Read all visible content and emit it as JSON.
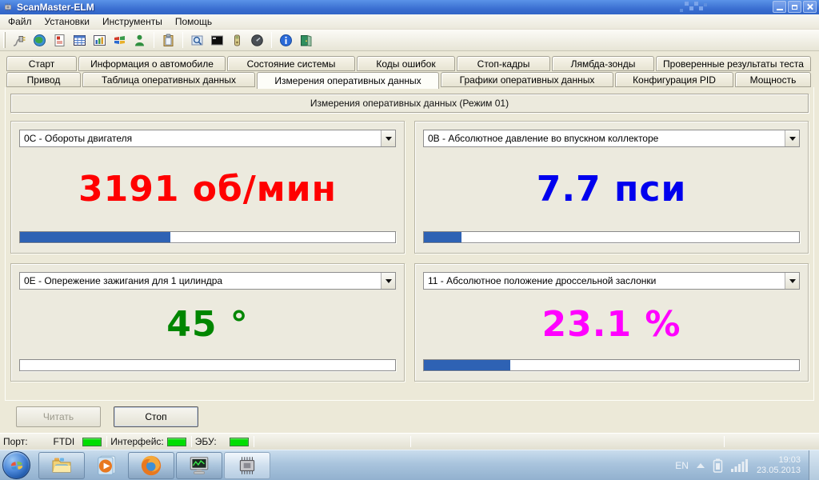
{
  "window": {
    "title": "ScanMaster-ELM",
    "controls": [
      "minimize-icon",
      "restore-icon",
      "close-icon"
    ],
    "app_icon": "chip-icon"
  },
  "menu": {
    "file": "Файл",
    "settings": "Установки",
    "tools": "Инструменты",
    "help": "Помощь"
  },
  "toolbar": {
    "icons": [
      "connect-icon",
      "globe-icon",
      "report-icon",
      "table-icon",
      "chart-icon",
      "windows-icon",
      "user-icon",
      "clipboard-icon",
      "search-icon",
      "terminal-icon",
      "battery-icon",
      "gauge-icon",
      "info-icon",
      "exit-icon"
    ]
  },
  "tabs": {
    "row1": [
      "Старт",
      "Информация о автомобиле",
      "Состояние системы",
      "Коды ошибок",
      "Стоп-кадры",
      "Лямбда-зонды",
      "Проверенные результаты теста"
    ],
    "row2": [
      "Привод",
      "Таблица оперативных данных",
      "Измерения оперативных данных",
      "Графики оперативных данных",
      "Конфигурация PID",
      "Мощность"
    ],
    "active_tab": "Измерения оперативных данных"
  },
  "main": {
    "header": "Измерения оперативных данных (Режим 01)",
    "panels": [
      {
        "pid": "0C - Обороты двигателя",
        "value": "3191 об/мин",
        "color": "#ff0000",
        "progress_percent": 40
      },
      {
        "pid": "0B - Абсолютное давление во впускном коллекторе",
        "value": "7.7 пси",
        "color": "#0000ee",
        "progress_percent": 10
      },
      {
        "pid": "0E - Опережение зажигания для 1 цилиндра",
        "value": "45 °",
        "color": "#008600",
        "progress_percent": 0
      },
      {
        "pid": "11 - Абсолютное положение дроссельной заслонки",
        "value": "23.1 %",
        "color": "#ff00ff",
        "progress_percent": 23
      }
    ],
    "read_button": "Читать",
    "stop_button": "Стоп"
  },
  "statusbar": {
    "port_label": "Порт:",
    "port_value": "FTDI",
    "interface_label": "Интерфейс:",
    "ecu_label": "ЭБУ:",
    "led_color": "#00dd00"
  },
  "taskbar": {
    "language": "EN",
    "time": "19:03",
    "date": "23.05.2013",
    "buttons": [
      "explorer-icon",
      "media-player-icon",
      "firefox-icon",
      "system-monitor-icon",
      "chip-icon"
    ]
  }
}
